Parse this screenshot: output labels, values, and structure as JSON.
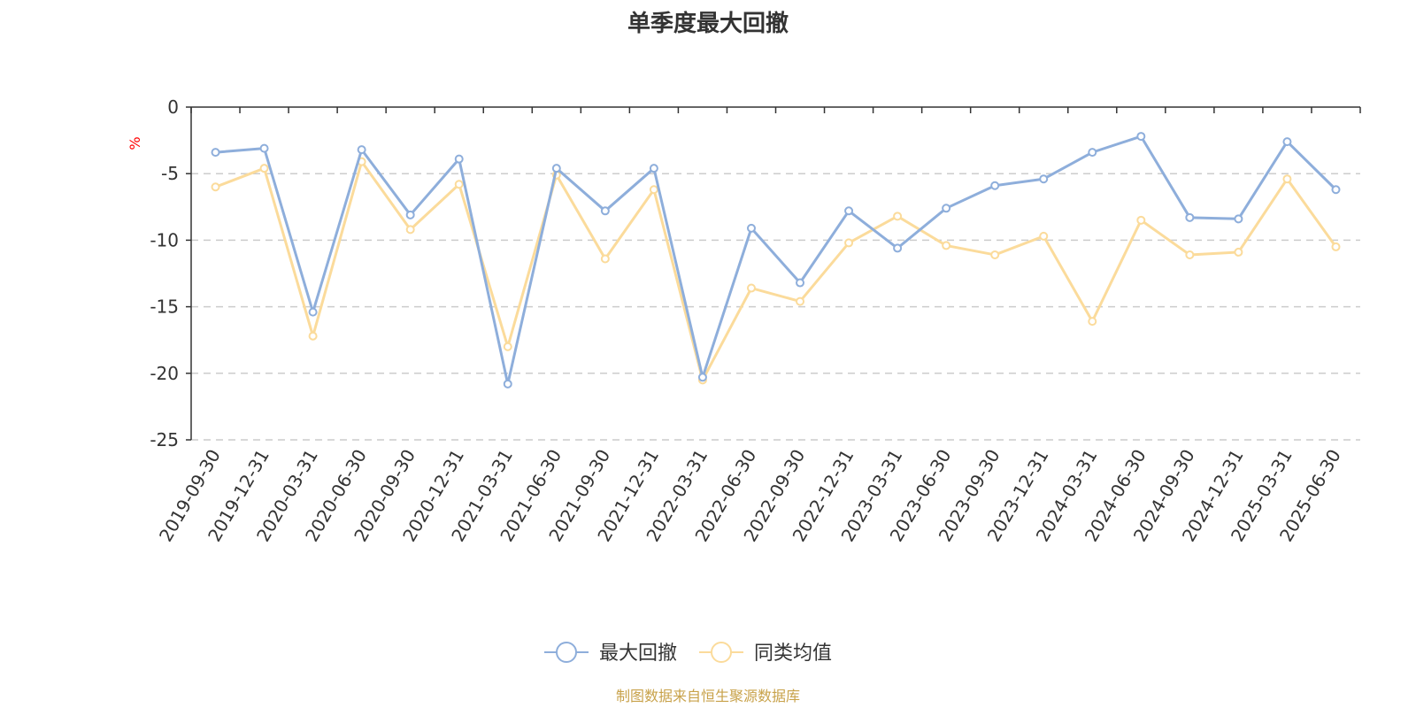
{
  "chart_data": {
    "type": "line",
    "title": "单季度最大回撤",
    "ylabel": "%",
    "ylim": [
      -25,
      0
    ],
    "yticks": [
      0,
      -5,
      -10,
      -15,
      -20,
      -25
    ],
    "grid": true,
    "legend_position": "bottom",
    "categories": [
      "2019-09-30",
      "2019-12-31",
      "2020-03-31",
      "2020-06-30",
      "2020-09-30",
      "2020-12-31",
      "2021-03-31",
      "2021-06-30",
      "2021-09-30",
      "2021-12-31",
      "2022-03-31",
      "2022-06-30",
      "2022-09-30",
      "2022-12-31",
      "2023-03-31",
      "2023-06-30",
      "2023-09-30",
      "2023-12-31",
      "2024-03-31",
      "2024-06-30",
      "2024-09-30",
      "2024-12-31",
      "2025-03-31",
      "2025-06-30"
    ],
    "series": [
      {
        "name": "最大回撤",
        "color": "#8eaedb",
        "values": [
          -3.4,
          -3.1,
          -15.4,
          -3.2,
          -8.1,
          -3.9,
          -20.8,
          -4.6,
          -7.8,
          -4.6,
          -20.3,
          -9.1,
          -13.2,
          -7.8,
          -10.6,
          -7.6,
          -5.9,
          -5.4,
          -3.4,
          -2.2,
          -8.3,
          -8.4,
          -2.6,
          -6.2
        ]
      },
      {
        "name": "同类均值",
        "color": "#fbdb9b",
        "values": [
          -6.0,
          -4.6,
          -17.2,
          -4.1,
          -9.2,
          -5.8,
          -18.0,
          -5.1,
          -11.4,
          -6.2,
          -20.5,
          -13.6,
          -14.6,
          -10.2,
          -8.2,
          -10.4,
          -11.1,
          -9.7,
          -16.1,
          -8.5,
          -11.1,
          -10.9,
          -5.4,
          -10.5
        ]
      }
    ]
  },
  "source": {
    "text": "制图数据来自恒生聚源数据库",
    "color": "#c8a24a"
  }
}
